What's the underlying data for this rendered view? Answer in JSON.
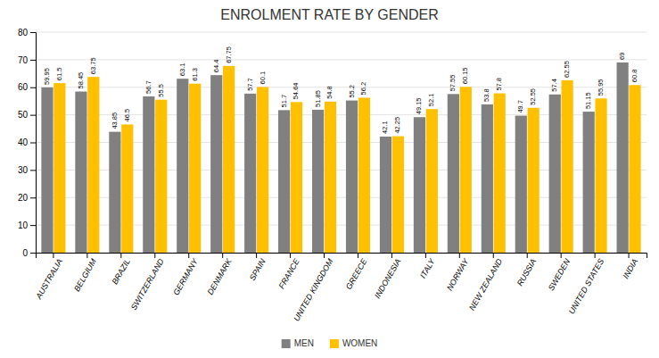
{
  "chart_data": {
    "type": "bar",
    "title": "ENROLMENT RATE BY GENDER",
    "categories": [
      "AUSTRALIA",
      "BELGIUM",
      "BRAZIL",
      "SWITZERLAND",
      "GERMANY",
      "DENMARK",
      "SPAIN",
      "FRANCE",
      "UNITED KINGDOM",
      "GREECE",
      "INDONESIA",
      "ITALY",
      "NORWAY",
      "NEW ZEALAND",
      "RUSSIA",
      "SWEDEN",
      "UNITED STATES",
      "INDIA"
    ],
    "series": [
      {
        "name": "MEN",
        "color": "#808080",
        "values": [
          59.95,
          58.45,
          43.85,
          56.7,
          63.1,
          64.4,
          57.7,
          51.7,
          51.85,
          55.2,
          42.1,
          49.15,
          57.55,
          53.8,
          49.7,
          57.4,
          51.15,
          69
        ]
      },
      {
        "name": "WOMEN",
        "color": "#FFC000",
        "values": [
          61.5,
          63.75,
          46.5,
          55.5,
          61.3,
          67.75,
          60.1,
          54.64,
          54.8,
          56.2,
          42.25,
          52.1,
          60.15,
          57.8,
          52.55,
          62.55,
          55.95,
          60.8
        ]
      }
    ],
    "ylim": [
      0,
      80
    ],
    "yticks": [
      0,
      10,
      20,
      30,
      40,
      50,
      60,
      70,
      80
    ],
    "grid": true,
    "data_labels": true,
    "legend": "bottom"
  }
}
